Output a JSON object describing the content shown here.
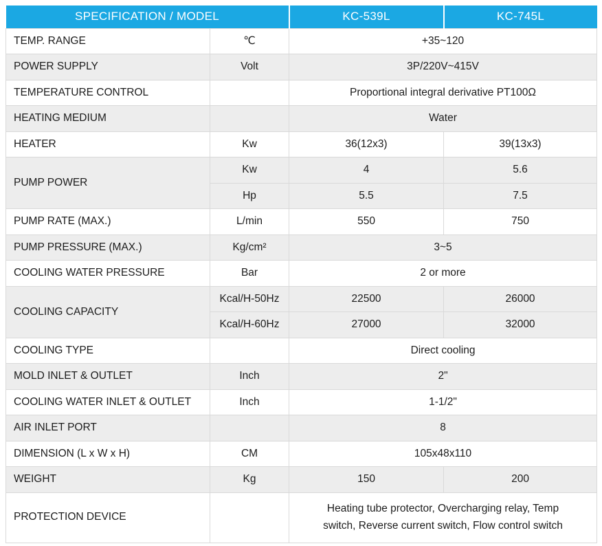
{
  "colors": {
    "header_blue": "#1BA8E3",
    "row_alt": "#EDEDED",
    "grid": "#D9D9D9",
    "header_text": "#FFFFFF",
    "body_text": "#1C1C1C"
  },
  "table": {
    "header": {
      "spec_model": "SPECIFICATION / MODEL",
      "model_1": "KC-539L",
      "model_2": "KC-745L"
    },
    "rows": [
      {
        "spec": "TEMP. RANGE",
        "unit": "℃",
        "value": "+35~120"
      },
      {
        "spec": "POWER SUPPLY",
        "unit": "Volt",
        "value": "3P/220V~415V"
      },
      {
        "spec": "TEMPERATURE CONTROL",
        "unit": "",
        "value": "Proportional integral derivative PT100Ω"
      },
      {
        "spec": "HEATING MEDIUM",
        "unit": "",
        "value": "Water"
      },
      {
        "spec": "HEATER",
        "unit": "Kw",
        "v1": "36(12x3)",
        "v2": "39(13x3)"
      },
      {
        "spec": "PUMP POWER",
        "unit": "Kw",
        "v1": "4",
        "v2": "5.6"
      },
      {
        "unit": "Hp",
        "v1": "5.5",
        "v2": "7.5"
      },
      {
        "spec": "PUMP RATE (MAX.)",
        "unit": "L/min",
        "v1": "550",
        "v2": "750"
      },
      {
        "spec": "PUMP PRESSURE (MAX.)",
        "unit": "Kg/cm²",
        "value": "3~5"
      },
      {
        "spec": "COOLING WATER PRESSURE",
        "unit": "Bar",
        "value": "2 or more"
      },
      {
        "spec": "COOLING CAPACITY",
        "unit": "Kcal/H-50Hz",
        "v1": "22500",
        "v2": "26000"
      },
      {
        "unit": "Kcal/H-60Hz",
        "v1": "27000",
        "v2": "32000"
      },
      {
        "spec": "COOLING TYPE",
        "unit": "",
        "value": "Direct cooling"
      },
      {
        "spec": "MOLD INLET & OUTLET",
        "unit": "Inch",
        "value": "2\""
      },
      {
        "spec": "COOLING WATER INLET & OUTLET",
        "unit": "Inch",
        "value": "1-1/2\""
      },
      {
        "spec": "AIR INLET PORT",
        "unit": "",
        "value": "8"
      },
      {
        "spec": "DIMENSION (L x W x H)",
        "unit": "CM",
        "value": "105x48x110"
      },
      {
        "spec": "WEIGHT",
        "unit": "Kg",
        "v1": "150",
        "v2": "200"
      },
      {
        "spec": "PROTECTION DEVICE",
        "unit": "",
        "value": "Heating tube protector, Overcharging relay, Temp switch, Reverse current switch, Flow control switch"
      }
    ]
  }
}
